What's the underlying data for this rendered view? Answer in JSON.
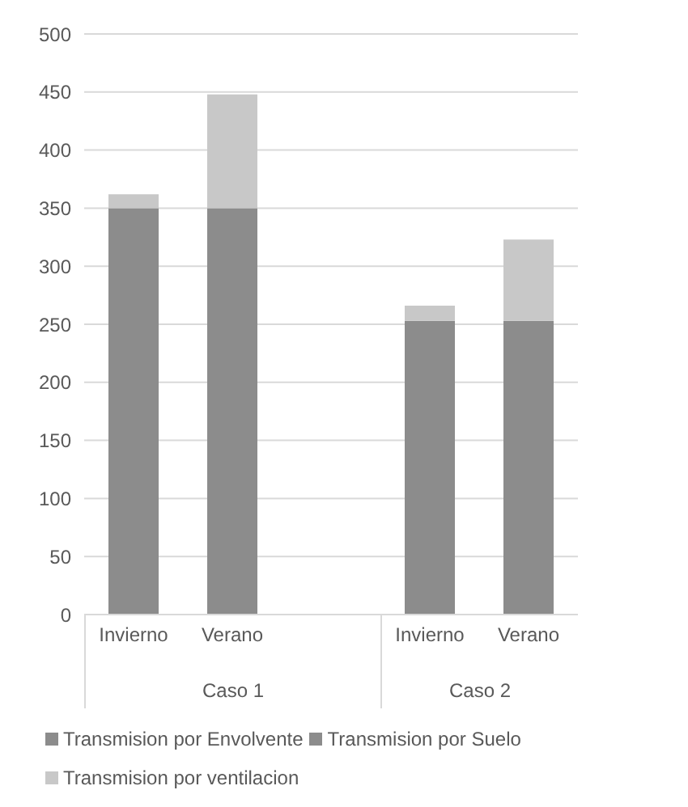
{
  "chart_data": {
    "type": "bar",
    "stacked": true,
    "categories": [
      "Invierno",
      "Verano",
      null,
      "Invierno",
      "Verano"
    ],
    "series": [
      {
        "name": "Transmision por Envolvente",
        "color": "#8c8c8c",
        "values": [
          350,
          350,
          null,
          null,
          null
        ]
      },
      {
        "name": "Transmision por Suelo",
        "color": "#8c8c8c",
        "values": [
          null,
          null,
          null,
          253,
          253
        ]
      },
      {
        "name": "Transmision por ventilacion",
        "color": "#c8c8c8",
        "values": [
          12,
          98,
          null,
          13,
          70
        ]
      }
    ],
    "annotations": [
      "Caso 1",
      "Caso 2"
    ],
    "ylim": [
      0,
      500
    ],
    "yticks": [
      0,
      50,
      100,
      150,
      200,
      250,
      300,
      350,
      400,
      450,
      500
    ],
    "grid": "y",
    "legend": "bottom"
  }
}
